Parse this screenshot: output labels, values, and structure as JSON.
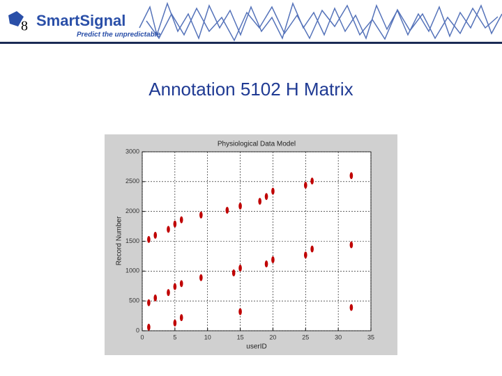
{
  "header": {
    "slide_number": "8",
    "logo": "SmartSignal",
    "tagline": "Predict the unpredictable"
  },
  "title": "Annotation 5102 H Matrix",
  "chart_data": {
    "type": "scatter",
    "title": "Physiological Data Model",
    "x_label": "userID",
    "y_label": "Record Number",
    "xlim": [
      0,
      35
    ],
    "xticks": [
      0,
      5,
      10,
      15,
      20,
      25,
      30,
      35
    ],
    "ylim": [
      0,
      3000
    ],
    "yticks": [
      0,
      500,
      1000,
      1500,
      2000,
      2500,
      3000
    ],
    "grid": true,
    "series": [
      {
        "color": "#c00000",
        "x": [
          1,
          1,
          1,
          2,
          2,
          4,
          4,
          5,
          5,
          5,
          6,
          6,
          6,
          9,
          9,
          13,
          14,
          15,
          15,
          15,
          18,
          19,
          20,
          19,
          20,
          25,
          26,
          25,
          26,
          32,
          32,
          32
        ],
        "y": [
          1530,
          470,
          60,
          1600,
          550,
          1700,
          640,
          1790,
          740,
          130,
          1860,
          790,
          220,
          1940,
          890,
          2020,
          970,
          2090,
          1050,
          320,
          2170,
          2250,
          2340,
          1120,
          1190,
          2440,
          2510,
          1270,
          1370,
          2600,
          1440,
          390
        ]
      }
    ]
  }
}
